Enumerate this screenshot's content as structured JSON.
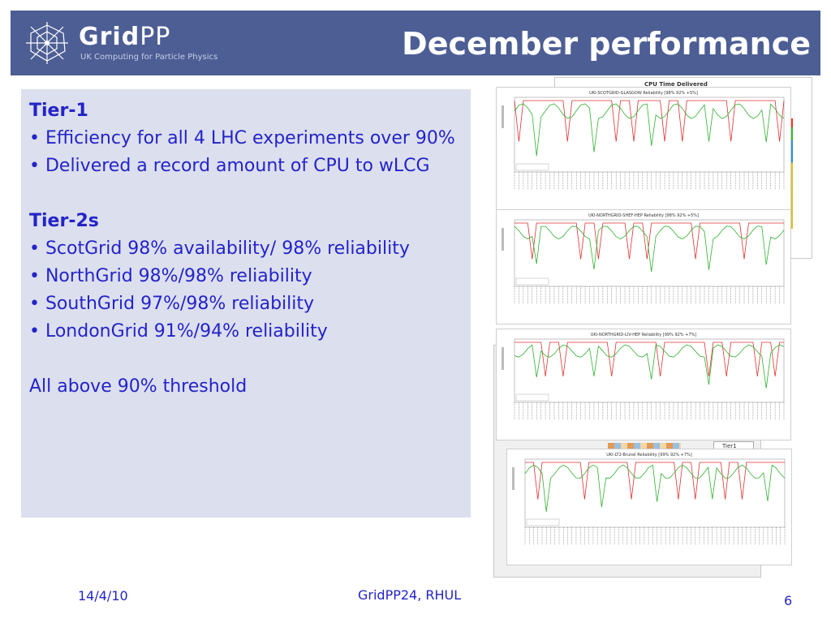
{
  "header": {
    "logo_name_bold": "Grid",
    "logo_name_thin": "PP",
    "logo_subtitle": "UK Computing for Particle Physics",
    "title": "December performance"
  },
  "content": {
    "tier1_heading": "Tier-1",
    "tier1_bullets": [
      "• Efficiency for all 4 LHC experiments over 90%",
      "• Delivered a record amount of CPU to wLCG"
    ],
    "tier2_heading": "Tier-2s",
    "tier2_bullets": [
      "• ScotGrid 98% availability/ 98% reliability",
      "• NorthGrid 98%/98% reliability",
      "• SouthGrid 97%/98% reliability",
      "• LondonGrid 91%/94% reliability"
    ],
    "conclusion": "All above 90% threshold"
  },
  "figures": {
    "background_chart_title": "CPU Time Delivered",
    "background_legend": "Tier1",
    "plots": [
      {
        "title": "UKI-SCOTGRID-GLASGOW Reliability [98% 92% +5%]"
      },
      {
        "title": "UKI-NORTHGRID-SHEF-HEP Reliability [98% 92% +5%]"
      },
      {
        "title": "UKI-NORTHGRID-LIV-HEP Reliability [99% 92% +7%]"
      },
      {
        "title": "UKI-LT2-Brunel Reliability [99% 92% +7%]"
      }
    ]
  },
  "footer": {
    "date": "14/4/10",
    "center": "GridPP24, RHUL",
    "page": "6"
  }
}
